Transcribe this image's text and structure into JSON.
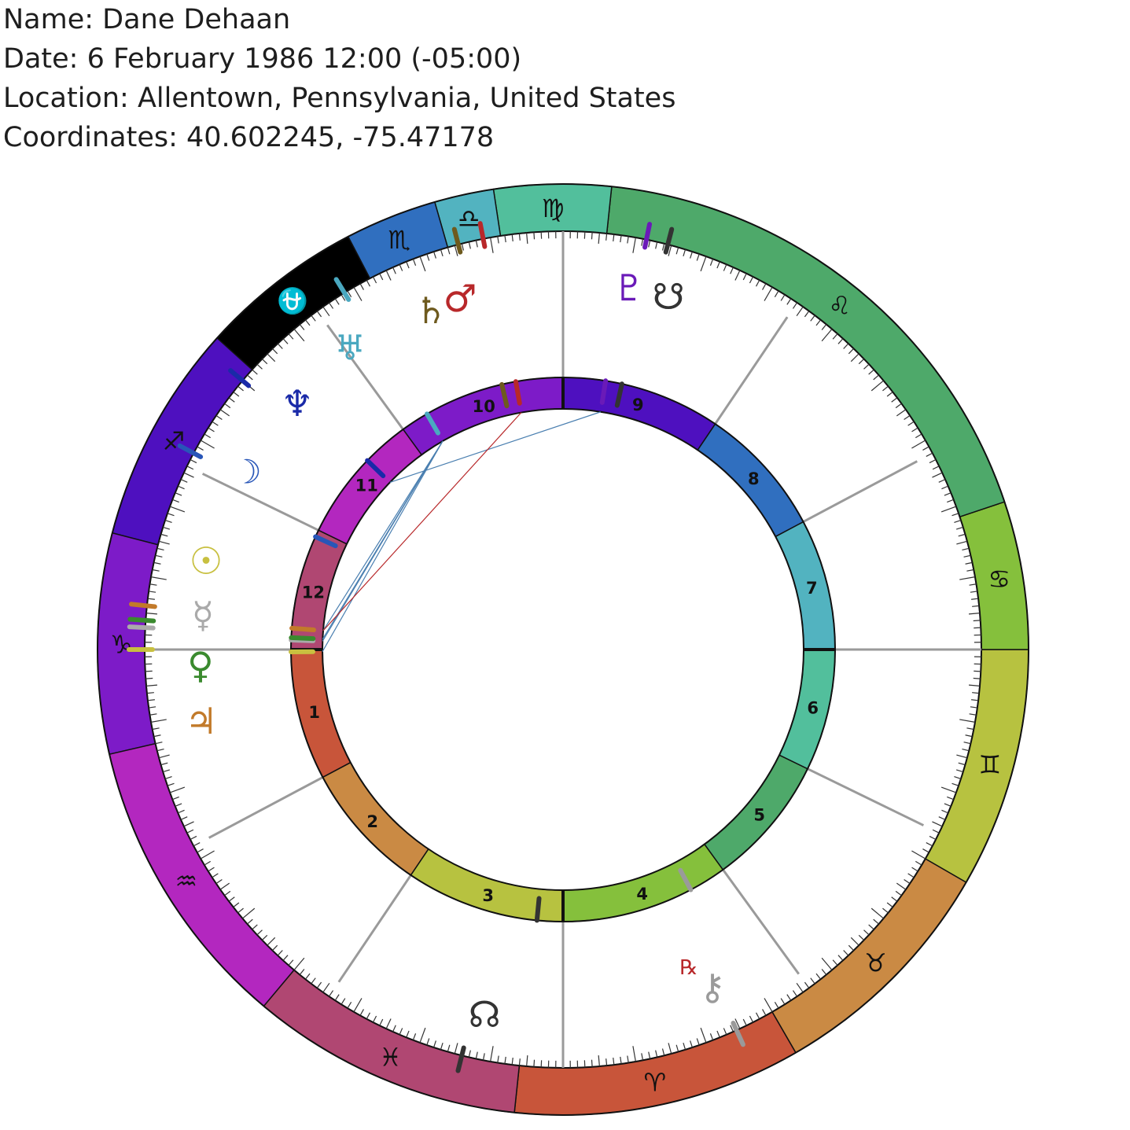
{
  "info": {
    "name": "Name: Dane Dehaan",
    "date": "Date: 6 February 1986 12:00 (-05:00)",
    "location": "Location: Allentown, Pennsylvania, United States",
    "coordinates": "Coordinates: 40.602245, -75.47178"
  },
  "signs": [
    {
      "name": "Aries",
      "symbol": "♈",
      "color": "#c8553a"
    },
    {
      "name": "Taurus",
      "symbol": "♉",
      "color": "#ca8a44"
    },
    {
      "name": "Gemini",
      "symbol": "♊",
      "color": "#b7c240"
    },
    {
      "name": "Cancer",
      "symbol": "♋",
      "color": "#85c03c"
    },
    {
      "name": "Leo",
      "symbol": "♌",
      "color": "#4ea96a"
    },
    {
      "name": "Virgo",
      "symbol": "♍",
      "color": "#52bf9c"
    },
    {
      "name": "Libra",
      "symbol": "♎",
      "color": "#52b3c0"
    },
    {
      "name": "Scorpio",
      "symbol": "♏",
      "color": "#306fbf"
    },
    {
      "name": "Ophiuchus",
      "symbol": "⛎",
      "color": "#000000"
    },
    {
      "name": "Sagittarius",
      "symbol": "♐",
      "color": "#4e10bf"
    },
    {
      "name": "Capricorn",
      "symbol": "♑",
      "color": "#7d1bc8"
    },
    {
      "name": "Aquarius",
      "symbol": "♒",
      "color": "#b327bf"
    },
    {
      "name": "Pisces",
      "symbol": "♓",
      "color": "#b04772"
    }
  ],
  "houses": [
    {
      "number": "1",
      "color": "#c8553a"
    },
    {
      "number": "2",
      "color": "#ca8a44"
    },
    {
      "number": "3",
      "color": "#b7c240"
    },
    {
      "number": "4",
      "color": "#85c03c"
    },
    {
      "number": "5",
      "color": "#4ea96a"
    },
    {
      "number": "6",
      "color": "#52bf9c"
    },
    {
      "number": "7",
      "color": "#52b3c0"
    },
    {
      "number": "8",
      "color": "#306fbf"
    },
    {
      "number": "9",
      "color": "#4e10bf"
    },
    {
      "number": "10",
      "color": "#7d1bc8"
    },
    {
      "number": "11",
      "color": "#b327bf"
    },
    {
      "number": "12",
      "color": "#b04772"
    }
  ],
  "planets": [
    {
      "name": "Sun",
      "symbol": "☉",
      "color": "#c8c040",
      "retrograde": false
    },
    {
      "name": "Moon",
      "symbol": "☽",
      "color": "#2856b8",
      "retrograde": false
    },
    {
      "name": "Mercury",
      "symbol": "☿",
      "color": "#aaaaaa",
      "retrograde": false
    },
    {
      "name": "Venus",
      "symbol": "♀",
      "color": "#3a8a2e",
      "retrograde": false
    },
    {
      "name": "Mars",
      "symbol": "♂",
      "color": "#b8282a",
      "retrograde": false
    },
    {
      "name": "Jupiter",
      "symbol": "♃",
      "color": "#c27a2a",
      "retrograde": false
    },
    {
      "name": "Saturn",
      "symbol": "♄",
      "color": "#6e5a1e",
      "retrograde": false
    },
    {
      "name": "Uranus",
      "symbol": "♅",
      "color": "#4aa8c0",
      "retrograde": false
    },
    {
      "name": "Neptune",
      "symbol": "♆",
      "color": "#1a2aa8",
      "retrograde": false
    },
    {
      "name": "Pluto",
      "symbol": "♇",
      "color": "#6a1ab8",
      "retrograde": false
    },
    {
      "name": "South Node",
      "symbol": "☋",
      "color": "#333333",
      "retrograde": false
    },
    {
      "name": "North Node",
      "symbol": "☊",
      "color": "#333333",
      "retrograde": false
    },
    {
      "name": "Chiron",
      "symbol": "⚷",
      "color": "#9a9a9a",
      "retrograde": true
    }
  ],
  "retrograde_label": "℞",
  "retrograde_color": "#b8282a"
}
